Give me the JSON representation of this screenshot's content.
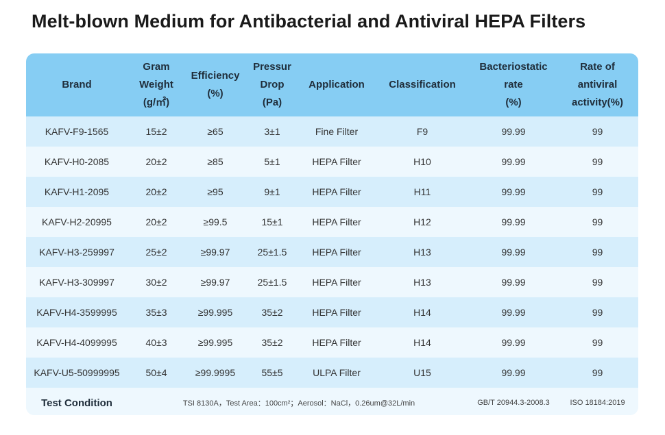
{
  "title": "Melt-blown Medium for Antibacterial and Antiviral HEPA Filters",
  "colors": {
    "header_bg": "#86cdf3",
    "row_dark": "#d6eefc",
    "row_light": "#eef8fe"
  },
  "table": {
    "headers": [
      [
        "Brand"
      ],
      [
        "Gram",
        "Weight",
        "(g/㎡)"
      ],
      [
        "Efficiency",
        "(%)"
      ],
      [
        "Pressur",
        "Drop",
        "(Pa)"
      ],
      [
        "Application"
      ],
      [
        "Classification"
      ],
      [
        "Bacteriostatic",
        "rate",
        "(%)"
      ],
      [
        "Rate of",
        "antiviral",
        "activity(%)"
      ]
    ],
    "rows": [
      [
        "KAFV-F9-1565",
        "15±2",
        "≥65",
        "3±1",
        "Fine Filter",
        "F9",
        "99.99",
        "99"
      ],
      [
        "KAFV-H0-2085",
        "20±2",
        "≥85",
        "5±1",
        "HEPA Filter",
        "H10",
        "99.99",
        "99"
      ],
      [
        "KAFV-H1-2095",
        "20±2",
        "≥95",
        "9±1",
        "HEPA Filter",
        "H11",
        "99.99",
        "99"
      ],
      [
        "KAFV-H2-20995",
        "20±2",
        "≥99.5",
        "15±1",
        "HEPA Filter",
        "H12",
        "99.99",
        "99"
      ],
      [
        "KAFV-H3-259997",
        "25±2",
        "≥99.97",
        "25±1.5",
        "HEPA Filter",
        "H13",
        "99.99",
        "99"
      ],
      [
        "KAFV-H3-309997",
        "30±2",
        "≥99.97",
        "25±1.5",
        "HEPA Filter",
        "H13",
        "99.99",
        "99"
      ],
      [
        "KAFV-H4-3599995",
        "35±3",
        "≥99.995",
        "35±2",
        "HEPA Filter",
        "H14",
        "99.99",
        "99"
      ],
      [
        "KAFV-H4-4099995",
        "40±3",
        "≥99.995",
        "35±2",
        "HEPA Filter",
        "H14",
        "99.99",
        "99"
      ],
      [
        "KAFV-U5-50999995",
        "50±4",
        "≥99.9995",
        "55±5",
        "ULPA Filter",
        "U15",
        "99.99",
        "99"
      ]
    ],
    "footer": {
      "label": "Test Condition",
      "condition": "TSI 8130A，Test Area：100cm²；Aerosol：NaCl，0.26um@32L/min",
      "bacteriostatic_standard": "GB/T 20944.3-2008.3",
      "antiviral_standard": "ISO 18184:2019"
    }
  }
}
